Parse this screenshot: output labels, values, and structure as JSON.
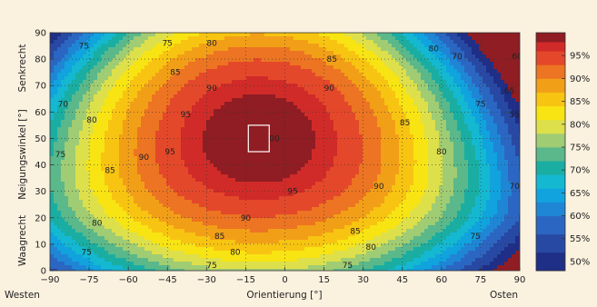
{
  "chart_data": {
    "type": "heatmap",
    "title": "",
    "xlabel": "Orientierung [°]",
    "ylabel": "Neigungswinkel [°]",
    "xlabel_left": "Westen",
    "xlabel_right": "Osten",
    "ylabel_top": "Senkrecht",
    "ylabel_bottom": "Waagrecht",
    "xlim": [
      -90,
      90
    ],
    "ylim": [
      0,
      90
    ],
    "x_ticks": [
      -90,
      -75,
      -60,
      -45,
      -30,
      -15,
      0,
      15,
      30,
      45,
      60,
      75,
      90
    ],
    "y_ticks": [
      0,
      10,
      20,
      30,
      40,
      50,
      60,
      70,
      80,
      90
    ],
    "grid": true,
    "optimum": {
      "orientation": -10,
      "tilt": 50,
      "half_width": 4,
      "half_height": 5
    },
    "contour_levels": [
      75,
      80,
      85,
      90,
      95
    ],
    "contour_labels": [
      {
        "text": "75",
        "x": -77,
        "y": 85
      },
      {
        "text": "75",
        "x": -45,
        "y": 86
      },
      {
        "text": "80",
        "x": -28,
        "y": 86
      },
      {
        "text": "85",
        "x": 18,
        "y": 80
      },
      {
        "text": "80",
        "x": 57,
        "y": 84
      },
      {
        "text": "70",
        "x": 66,
        "y": 81
      },
      {
        "text": "65",
        "x": 86,
        "y": 68
      },
      {
        "text": "75",
        "x": 75,
        "y": 63
      },
      {
        "text": "55",
        "x": 88,
        "y": 59
      },
      {
        "text": "60",
        "x": 89,
        "y": 81
      },
      {
        "text": "70",
        "x": -85,
        "y": 63
      },
      {
        "text": "85",
        "x": -42,
        "y": 75
      },
      {
        "text": "90",
        "x": -28,
        "y": 69
      },
      {
        "text": "90",
        "x": 17,
        "y": 69
      },
      {
        "text": "95",
        "x": -38,
        "y": 59
      },
      {
        "text": "80",
        "x": -74,
        "y": 57
      },
      {
        "text": "85",
        "x": 46,
        "y": 56
      },
      {
        "text": "75",
        "x": -86,
        "y": 44
      },
      {
        "text": "85",
        "x": -67,
        "y": 38
      },
      {
        "text": "90",
        "x": -54,
        "y": 43
      },
      {
        "text": "95",
        "x": -44,
        "y": 45
      },
      {
        "text": "80",
        "x": 60,
        "y": 45
      },
      {
        "text": "100",
        "x": -5,
        "y": 50
      },
      {
        "text": "95",
        "x": 3,
        "y": 30
      },
      {
        "text": "90",
        "x": 36,
        "y": 32
      },
      {
        "text": "70",
        "x": 88,
        "y": 32
      },
      {
        "text": "80",
        "x": -72,
        "y": 18
      },
      {
        "text": "90",
        "x": -15,
        "y": 20
      },
      {
        "text": "85",
        "x": -25,
        "y": 13
      },
      {
        "text": "85",
        "x": 27,
        "y": 15
      },
      {
        "text": "75",
        "x": -76,
        "y": 7
      },
      {
        "text": "75",
        "x": 73,
        "y": 13
      },
      {
        "text": "80",
        "x": -19,
        "y": 7
      },
      {
        "text": "80",
        "x": 33,
        "y": 9
      },
      {
        "text": "75",
        "x": -28,
        "y": 2
      },
      {
        "text": "75",
        "x": 24,
        "y": 2
      }
    ],
    "colorbar": {
      "min": 48,
      "max": 100,
      "ticks": [
        {
          "value": 50,
          "label": "50%"
        },
        {
          "value": 55,
          "label": "55%"
        },
        {
          "value": 60,
          "label": "60%"
        },
        {
          "value": 65,
          "label": "65%"
        },
        {
          "value": 70,
          "label": "70%"
        },
        {
          "value": 75,
          "label": "75%"
        },
        {
          "value": 80,
          "label": "80%"
        },
        {
          "value": 85,
          "label": "85%"
        },
        {
          "value": 90,
          "label": "90%"
        },
        {
          "value": 95,
          "label": "95%"
        }
      ],
      "bands": [
        {
          "from": 48,
          "to": 52,
          "color": "#1f2e86"
        },
        {
          "from": 52,
          "to": 56,
          "color": "#2849a3"
        },
        {
          "from": 56,
          "to": 60,
          "color": "#2b67c2"
        },
        {
          "from": 60,
          "to": 63,
          "color": "#1f86d6"
        },
        {
          "from": 63,
          "to": 66,
          "color": "#10a3de"
        },
        {
          "from": 66,
          "to": 69,
          "color": "#14b8d0"
        },
        {
          "from": 69,
          "to": 72,
          "color": "#1aaea3"
        },
        {
          "from": 72,
          "to": 75,
          "color": "#5ab88a"
        },
        {
          "from": 75,
          "to": 78,
          "color": "#a0cc73"
        },
        {
          "from": 78,
          "to": 81,
          "color": "#dde04a"
        },
        {
          "from": 81,
          "to": 84,
          "color": "#f8e413"
        },
        {
          "from": 84,
          "to": 87,
          "color": "#f8c412"
        },
        {
          "from": 87,
          "to": 90,
          "color": "#f29f18"
        },
        {
          "from": 90,
          "to": 93,
          "color": "#ec7422"
        },
        {
          "from": 93,
          "to": 96,
          "color": "#e4482a"
        },
        {
          "from": 96,
          "to": 98,
          "color": "#d02b28"
        },
        {
          "from": 98,
          "to": 100,
          "color": "#8f1d23"
        }
      ]
    }
  }
}
